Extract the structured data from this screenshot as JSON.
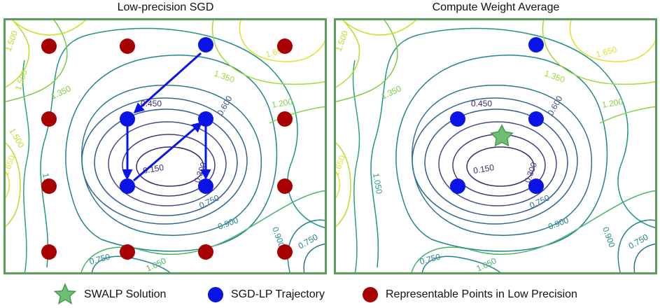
{
  "panels": {
    "left": {
      "title": "Low-precision SGD",
      "contour_labels": [
        "1.500",
        "1.350",
        "1.650",
        "1.500",
        "1.350",
        "0.450",
        "0.600",
        "1.200",
        "1.650",
        "1.500",
        "1.050",
        "0.150",
        "0.300",
        "0.750",
        "0.900",
        "0.900",
        "0.750",
        "0.750",
        "1.050"
      ]
    },
    "right": {
      "title": "Compute Weight Average",
      "contour_labels": [
        "1.500",
        "1.350",
        "1.650",
        "1.350",
        "0.450",
        "0.600",
        "1.200",
        "1.650",
        "1.050",
        "0.150",
        "0.300",
        "0.750",
        "0.900",
        "0.900",
        "0.750",
        "0.750",
        "1.050"
      ]
    }
  },
  "legend": {
    "swalp": "SWALP Solution",
    "sgd_lp": "SGD-LP Trajectory",
    "representable": "Representable Points in Low Precision"
  },
  "colors": {
    "frame": "#5e9d5e",
    "trajectory": "#0a14e6",
    "representable": "#a80000",
    "swalp": "#6fbf73",
    "contour_low": "#3b2a70",
    "contour_high": "#e2e033"
  }
}
